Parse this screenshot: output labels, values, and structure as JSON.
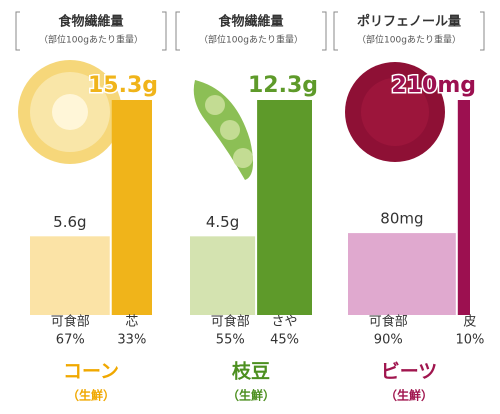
{
  "chart_data": [
    {
      "type": "bar",
      "title": "食物繊維量",
      "subtitle": "（部位100gあたり重量）",
      "name": "コーン",
      "note": "（生鮮）",
      "categories": [
        "可食部",
        "芯"
      ],
      "values": [
        5.6,
        15.3
      ],
      "value_labels": [
        "5.6g",
        "15.3g"
      ],
      "shares": [
        67,
        33
      ],
      "share_labels": [
        "67%",
        "33%"
      ],
      "colors": [
        "#fbe3a6",
        "#f0b41a"
      ],
      "name_color": "#f0a800",
      "ylim": [
        0,
        15.3
      ]
    },
    {
      "type": "bar",
      "title": "食物繊維量",
      "subtitle": "（部位100gあたり重量）",
      "name": "枝豆",
      "note": "（生鮮）",
      "categories": [
        "可食部",
        "さや"
      ],
      "values": [
        4.5,
        12.3
      ],
      "value_labels": [
        "4.5g",
        "12.3g"
      ],
      "shares": [
        55,
        45
      ],
      "share_labels": [
        "55%",
        "45%"
      ],
      "colors": [
        "#d4e3b0",
        "#5e9a2a"
      ],
      "name_color": "#4c8f1f",
      "ylim": [
        0,
        12.3
      ]
    },
    {
      "type": "bar",
      "title": "ポリフェノール量",
      "subtitle": "（部位100gあたり重量）",
      "name": "ビーツ",
      "note": "（生鮮）",
      "categories": [
        "可食部",
        "皮"
      ],
      "values": [
        80,
        210
      ],
      "value_labels": [
        "80mg",
        "210mg"
      ],
      "shares": [
        90,
        10
      ],
      "share_labels": [
        "90%",
        "10%"
      ],
      "colors": [
        "#e0a9cf",
        "#9c1050"
      ],
      "name_color": "#a0154e",
      "ylim": [
        0,
        210
      ]
    }
  ]
}
